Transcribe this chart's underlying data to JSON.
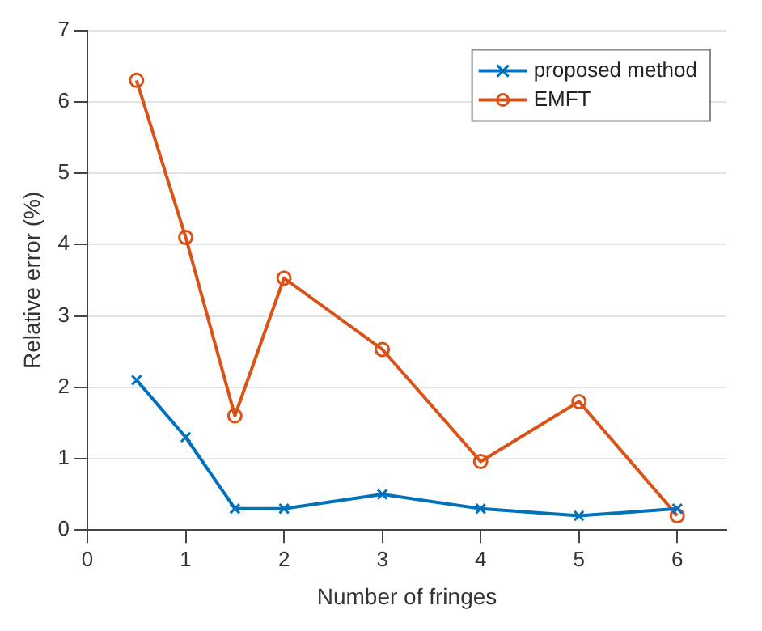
{
  "chart_data": {
    "type": "line",
    "xlabel": "Number of fringes",
    "ylabel": "Relative error (%)",
    "x": [
      0.5,
      1,
      1.5,
      2,
      3,
      4,
      5,
      6
    ],
    "series": [
      {
        "name": "proposed method",
        "color": "#0072bd",
        "marker": "cross",
        "values": [
          2.1,
          1.3,
          0.3,
          0.3,
          0.5,
          0.3,
          0.2,
          0.3
        ]
      },
      {
        "name": "EMFT",
        "color": "#d95319",
        "marker": "circle",
        "values": [
          6.3,
          4.1,
          1.6,
          3.53,
          2.53,
          0.96,
          1.8,
          0.2
        ]
      }
    ],
    "xlim": [
      0,
      6.5
    ],
    "xticks": [
      0,
      1,
      2,
      3,
      4,
      5,
      6
    ],
    "ylim": [
      0,
      7
    ],
    "yticks": [
      0,
      1,
      2,
      3,
      4,
      5,
      6,
      7
    ],
    "grid": "y",
    "legend": "top right",
    "line_style": "solid"
  }
}
